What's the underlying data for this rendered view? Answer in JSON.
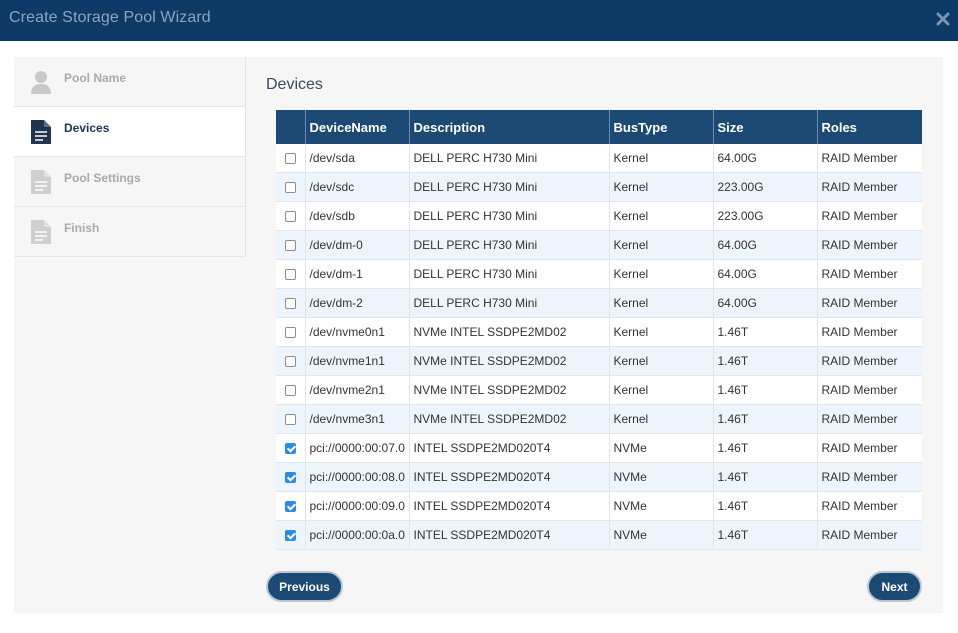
{
  "window": {
    "title": "Create Storage Pool Wizard"
  },
  "steps": [
    {
      "label": "Pool Name",
      "icon": "user-icon",
      "active": false
    },
    {
      "label": "Devices",
      "icon": "document-icon",
      "active": true
    },
    {
      "label": "Pool Settings",
      "icon": "document-icon",
      "active": false
    },
    {
      "label": "Finish",
      "icon": "document-icon",
      "active": false
    }
  ],
  "main": {
    "heading": "Devices",
    "columns": [
      "DeviceName",
      "Description",
      "BusType",
      "Size",
      "Roles"
    ],
    "rows": [
      {
        "checked": false,
        "name": "/dev/sda",
        "description": "DELL PERC H730 Mini",
        "bus": "Kernel",
        "size": "64.00G",
        "role": "RAID Member"
      },
      {
        "checked": false,
        "name": "/dev/sdc",
        "description": "DELL PERC H730 Mini",
        "bus": "Kernel",
        "size": "223.00G",
        "role": "RAID Member"
      },
      {
        "checked": false,
        "name": "/dev/sdb",
        "description": "DELL PERC H730 Mini",
        "bus": "Kernel",
        "size": "223.00G",
        "role": "RAID Member"
      },
      {
        "checked": false,
        "name": "/dev/dm-0",
        "description": "DELL PERC H730 Mini",
        "bus": "Kernel",
        "size": "64.00G",
        "role": "RAID Member"
      },
      {
        "checked": false,
        "name": "/dev/dm-1",
        "description": "DELL PERC H730 Mini",
        "bus": "Kernel",
        "size": "64.00G",
        "role": "RAID Member"
      },
      {
        "checked": false,
        "name": "/dev/dm-2",
        "description": "DELL PERC H730 Mini",
        "bus": "Kernel",
        "size": "64.00G",
        "role": "RAID Member"
      },
      {
        "checked": false,
        "name": "/dev/nvme0n1",
        "description": "NVMe INTEL SSDPE2MD02",
        "bus": "Kernel",
        "size": "1.46T",
        "role": "RAID Member"
      },
      {
        "checked": false,
        "name": "/dev/nvme1n1",
        "description": "NVMe INTEL SSDPE2MD02",
        "bus": "Kernel",
        "size": "1.46T",
        "role": "RAID Member"
      },
      {
        "checked": false,
        "name": "/dev/nvme2n1",
        "description": "NVMe INTEL SSDPE2MD02",
        "bus": "Kernel",
        "size": "1.46T",
        "role": "RAID Member"
      },
      {
        "checked": false,
        "name": "/dev/nvme3n1",
        "description": "NVMe INTEL SSDPE2MD02",
        "bus": "Kernel",
        "size": "1.46T",
        "role": "RAID Member"
      },
      {
        "checked": true,
        "name": "pci://0000:00:07.0",
        "description": "INTEL SSDPE2MD020T4",
        "bus": "NVMe",
        "size": "1.46T",
        "role": "RAID Member"
      },
      {
        "checked": true,
        "name": "pci://0000:00:08.0",
        "description": "INTEL SSDPE2MD020T4",
        "bus": "NVMe",
        "size": "1.46T",
        "role": "RAID Member"
      },
      {
        "checked": true,
        "name": "pci://0000:00:09.0",
        "description": "INTEL SSDPE2MD020T4",
        "bus": "NVMe",
        "size": "1.46T",
        "role": "RAID Member"
      },
      {
        "checked": true,
        "name": "pci://0000:00:0a.0",
        "description": "INTEL SSDPE2MD020T4",
        "bus": "NVMe",
        "size": "1.46T",
        "role": "RAID Member"
      }
    ]
  },
  "buttons": {
    "previous": "Previous",
    "next": "Next"
  },
  "colors": {
    "header": "#0d3a66",
    "table_header": "#1d4a75",
    "checkbox": "#2c8be6"
  }
}
